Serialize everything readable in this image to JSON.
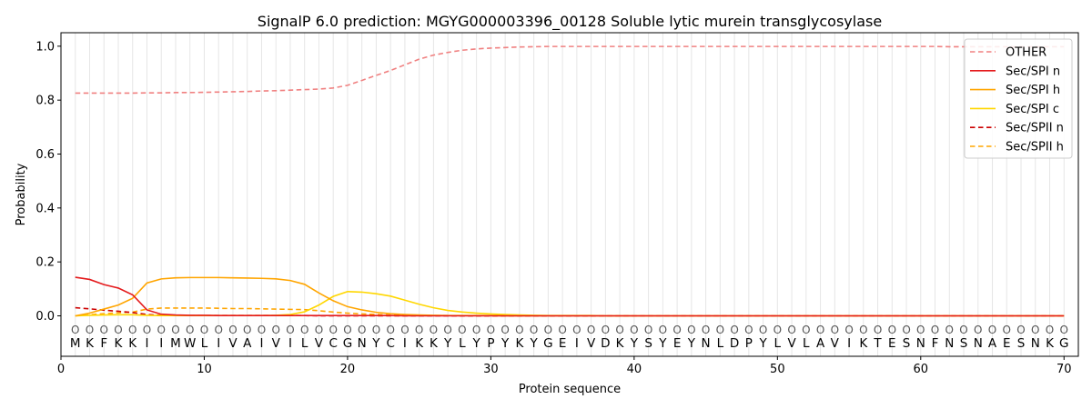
{
  "chart_data": {
    "type": "line",
    "title": "SignalP 6.0 prediction: MGYG000003396_00128 Soluble lytic murein transglycosylase",
    "xlabel": "Protein sequence",
    "ylabel": "Probability",
    "xlim": [
      0,
      71
    ],
    "ylim": [
      -0.15,
      1.05
    ],
    "xticks": [
      0,
      10,
      20,
      30,
      40,
      50,
      60,
      70
    ],
    "yticks": [
      0.0,
      0.2,
      0.4,
      0.6,
      0.8,
      1.0
    ],
    "ytick_labels": [
      "0.0",
      "0.2",
      "0.4",
      "0.6",
      "0.8",
      "1.0"
    ],
    "grid": "vertical lines at each residue",
    "legend_position": "top-right",
    "sequence": [
      "M",
      "K",
      "F",
      "K",
      "K",
      "I",
      "I",
      "M",
      "W",
      "L",
      "I",
      "V",
      "A",
      "I",
      "V",
      "I",
      "L",
      "V",
      "C",
      "G",
      "N",
      "Y",
      "C",
      "I",
      "K",
      "K",
      "Y",
      "L",
      "Y",
      "P",
      "Y",
      "K",
      "Y",
      "G",
      "E",
      "I",
      "V",
      "D",
      "K",
      "Y",
      "S",
      "Y",
      "E",
      "Y",
      "N",
      "L",
      "D",
      "P",
      "Y",
      "L",
      "V",
      "L",
      "A",
      "V",
      "I",
      "K",
      "T",
      "E",
      "S",
      "N",
      "F",
      "N",
      "S",
      "N",
      "A",
      "E",
      "S",
      "N",
      "K",
      "G"
    ],
    "state_label": "O",
    "x": [
      1,
      2,
      3,
      4,
      5,
      6,
      7,
      8,
      9,
      10,
      11,
      12,
      13,
      14,
      15,
      16,
      17,
      18,
      19,
      20,
      21,
      22,
      23,
      24,
      25,
      26,
      27,
      28,
      29,
      30,
      31,
      32,
      33,
      34,
      35,
      36,
      37,
      38,
      39,
      40,
      41,
      42,
      43,
      44,
      45,
      46,
      47,
      48,
      49,
      50,
      51,
      52,
      53,
      54,
      55,
      56,
      57,
      58,
      59,
      60,
      61,
      62,
      63,
      64,
      65,
      66,
      67,
      68,
      69,
      70
    ],
    "series": [
      {
        "name": "OTHER",
        "color": "#f08080",
        "dash": true,
        "values": [
          0.826,
          0.826,
          0.826,
          0.826,
          0.826,
          0.827,
          0.827,
          0.828,
          0.828,
          0.829,
          0.83,
          0.831,
          0.832,
          0.834,
          0.835,
          0.837,
          0.839,
          0.841,
          0.845,
          0.855,
          0.873,
          0.892,
          0.91,
          0.931,
          0.952,
          0.967,
          0.977,
          0.985,
          0.99,
          0.993,
          0.995,
          0.997,
          0.998,
          0.999,
          0.999,
          0.999,
          0.999,
          0.999,
          0.999,
          0.999,
          0.999,
          0.999,
          0.999,
          0.999,
          0.999,
          0.999,
          0.999,
          0.999,
          0.999,
          0.999,
          0.999,
          0.999,
          0.999,
          0.999,
          0.999,
          0.999,
          0.999,
          0.999,
          0.999,
          0.999,
          0.999,
          0.998,
          0.998,
          0.998,
          0.998,
          0.998,
          0.998,
          0.998,
          0.998,
          0.998
        ]
      },
      {
        "name": "Sec/SPI n",
        "color": "#e41a1c",
        "dash": false,
        "values": [
          0.143,
          0.135,
          0.116,
          0.103,
          0.078,
          0.022,
          0.006,
          0.003,
          0.002,
          0.002,
          0.001,
          0.001,
          0.001,
          0.001,
          0.001,
          0.001,
          0.001,
          0.001,
          0.001,
          0.001,
          0.001,
          0.001,
          0.001,
          0.0,
          0.0,
          0.0,
          0.0,
          0.0,
          0.0,
          0.0,
          0.0,
          0.0,
          0.0,
          0.0,
          0.0,
          0.0,
          0.0,
          0.0,
          0.0,
          0.0,
          0.0,
          0.0,
          0.0,
          0.0,
          0.0,
          0.0,
          0.0,
          0.0,
          0.0,
          0.0,
          0.0,
          0.0,
          0.0,
          0.0,
          0.0,
          0.0,
          0.0,
          0.0,
          0.0,
          0.0,
          0.0,
          0.0,
          0.0,
          0.0,
          0.0,
          0.0,
          0.0,
          0.0,
          0.0,
          0.0
        ]
      },
      {
        "name": "Sec/SPI h",
        "color": "#ffa500",
        "dash": false,
        "values": [
          0.0,
          0.01,
          0.025,
          0.04,
          0.065,
          0.122,
          0.137,
          0.141,
          0.142,
          0.142,
          0.142,
          0.141,
          0.14,
          0.139,
          0.137,
          0.131,
          0.117,
          0.085,
          0.056,
          0.034,
          0.022,
          0.013,
          0.008,
          0.005,
          0.003,
          0.002,
          0.001,
          0.001,
          0.001,
          0.001,
          0.0,
          0.0,
          0.0,
          0.0,
          0.0,
          0.0,
          0.0,
          0.0,
          0.0,
          0.0,
          0.0,
          0.0,
          0.0,
          0.0,
          0.0,
          0.0,
          0.0,
          0.0,
          0.0,
          0.0,
          0.0,
          0.0,
          0.0,
          0.0,
          0.0,
          0.0,
          0.0,
          0.0,
          0.0,
          0.0,
          0.0,
          0.0,
          0.0,
          0.0,
          0.0,
          0.0,
          0.0,
          0.0,
          0.0,
          0.0
        ]
      },
      {
        "name": "Sec/SPI c",
        "color": "#ffd700",
        "dash": false,
        "values": [
          0.0,
          0.002,
          0.003,
          0.004,
          0.004,
          0.002,
          0.001,
          0.001,
          0.001,
          0.001,
          0.001,
          0.001,
          0.001,
          0.001,
          0.002,
          0.005,
          0.015,
          0.04,
          0.072,
          0.09,
          0.088,
          0.082,
          0.073,
          0.058,
          0.043,
          0.03,
          0.02,
          0.014,
          0.01,
          0.007,
          0.005,
          0.003,
          0.002,
          0.001,
          0.001,
          0.001,
          0.001,
          0.0,
          0.0,
          0.0,
          0.0,
          0.0,
          0.0,
          0.0,
          0.0,
          0.0,
          0.0,
          0.0,
          0.0,
          0.0,
          0.0,
          0.0,
          0.0,
          0.0,
          0.0,
          0.0,
          0.0,
          0.0,
          0.0,
          0.0,
          0.0,
          0.0,
          0.0,
          0.0,
          0.0,
          0.0,
          0.0,
          0.0,
          0.0,
          0.0
        ]
      },
      {
        "name": "Sec/SPII n",
        "color": "#cc0000",
        "dash": true,
        "values": [
          0.03,
          0.026,
          0.021,
          0.017,
          0.012,
          0.005,
          0.002,
          0.001,
          0.001,
          0.001,
          0.001,
          0.001,
          0.001,
          0.001,
          0.001,
          0.001,
          0.001,
          0.0,
          0.0,
          0.0,
          0.0,
          0.0,
          0.0,
          0.0,
          0.0,
          0.0,
          0.0,
          0.0,
          0.0,
          0.0,
          0.0,
          0.0,
          0.0,
          0.0,
          0.0,
          0.0,
          0.0,
          0.0,
          0.0,
          0.0,
          0.0,
          0.0,
          0.0,
          0.0,
          0.0,
          0.0,
          0.0,
          0.0,
          0.0,
          0.0,
          0.0,
          0.0,
          0.0,
          0.0,
          0.0,
          0.0,
          0.0,
          0.0,
          0.0,
          0.0,
          0.0,
          0.0,
          0.0,
          0.0,
          0.0,
          0.0,
          0.0,
          0.0,
          0.0,
          0.0
        ]
      },
      {
        "name": "Sec/SPII h",
        "color": "#ffa500",
        "dash": true,
        "values": [
          0.0,
          0.004,
          0.008,
          0.011,
          0.014,
          0.025,
          0.029,
          0.029,
          0.029,
          0.029,
          0.028,
          0.027,
          0.027,
          0.026,
          0.025,
          0.024,
          0.023,
          0.019,
          0.014,
          0.01,
          0.007,
          0.005,
          0.003,
          0.002,
          0.001,
          0.001,
          0.001,
          0.0,
          0.0,
          0.0,
          0.0,
          0.0,
          0.0,
          0.0,
          0.0,
          0.0,
          0.0,
          0.0,
          0.0,
          0.0,
          0.0,
          0.0,
          0.0,
          0.0,
          0.0,
          0.0,
          0.0,
          0.0,
          0.0,
          0.0,
          0.0,
          0.0,
          0.0,
          0.0,
          0.0,
          0.0,
          0.0,
          0.0,
          0.0,
          0.0,
          0.0,
          0.0,
          0.0,
          0.0,
          0.0,
          0.0,
          0.0,
          0.0,
          0.0,
          0.0
        ]
      }
    ]
  }
}
